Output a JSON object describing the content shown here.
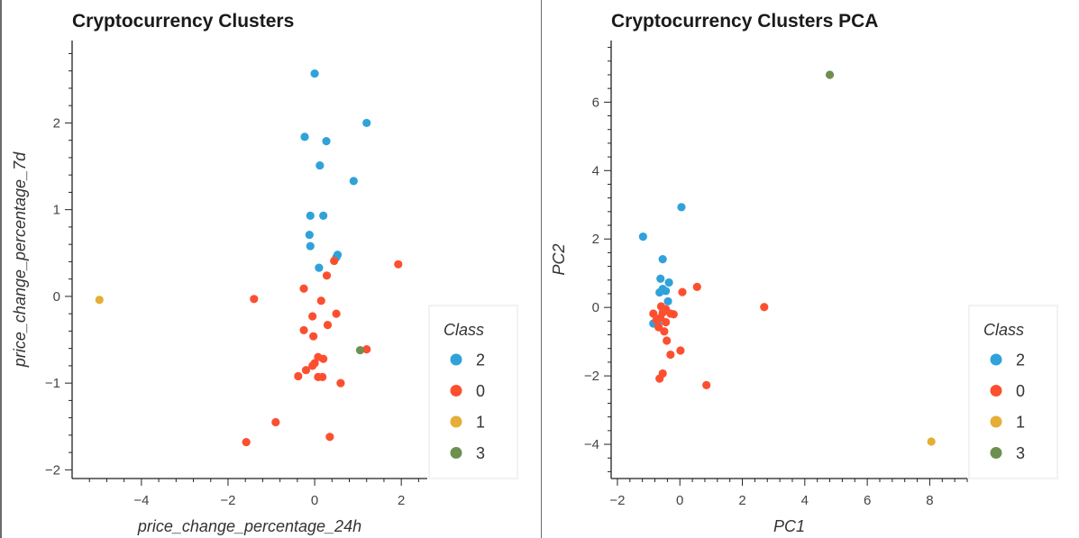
{
  "legend": {
    "title": "Class",
    "entries": [
      {
        "label": "2",
        "color": "#30a2da"
      },
      {
        "label": "0",
        "color": "#fc4f30"
      },
      {
        "label": "1",
        "color": "#e5ae38"
      },
      {
        "label": "3",
        "color": "#6d904f"
      }
    ]
  },
  "chart_data": [
    {
      "type": "scatter",
      "title": "Cryptocurrency Clusters",
      "xlabel": "price_change_percentage_24h",
      "ylabel": "price_change_percentage_7d",
      "xlim": [
        -5.6,
        2.6
      ],
      "ylim": [
        -2.1,
        2.95
      ],
      "xticks": [
        -4,
        -2,
        0,
        2
      ],
      "yticks": [
        -2,
        -1,
        0,
        1,
        2
      ],
      "series": [
        {
          "name": "2",
          "color": "#30a2da",
          "points": [
            [
              0.0,
              2.57
            ],
            [
              1.2,
              2.0
            ],
            [
              -0.23,
              1.84
            ],
            [
              0.27,
              1.79
            ],
            [
              0.12,
              1.51
            ],
            [
              0.9,
              1.33
            ],
            [
              -0.1,
              0.93
            ],
            [
              0.2,
              0.93
            ],
            [
              -0.12,
              0.71
            ],
            [
              -0.1,
              0.58
            ],
            [
              0.53,
              0.48
            ],
            [
              0.1,
              0.33
            ],
            [
              0.5,
              0.45
            ]
          ]
        },
        {
          "name": "0",
          "color": "#fc4f30",
          "points": [
            [
              1.93,
              0.37
            ],
            [
              0.45,
              0.41
            ],
            [
              0.28,
              0.24
            ],
            [
              -0.25,
              0.09
            ],
            [
              -1.4,
              -0.03
            ],
            [
              0.15,
              -0.05
            ],
            [
              0.5,
              -0.2
            ],
            [
              -0.05,
              -0.23
            ],
            [
              0.3,
              -0.33
            ],
            [
              -0.25,
              -0.39
            ],
            [
              -0.03,
              -0.46
            ],
            [
              1.2,
              -0.61
            ],
            [
              0.08,
              -0.7
            ],
            [
              0.2,
              -0.72
            ],
            [
              0.0,
              -0.77
            ],
            [
              -0.05,
              -0.8
            ],
            [
              -0.2,
              -0.85
            ],
            [
              -0.38,
              -0.92
            ],
            [
              0.08,
              -0.93
            ],
            [
              0.18,
              -0.93
            ],
            [
              0.6,
              -1.0
            ],
            [
              -0.9,
              -1.45
            ],
            [
              0.35,
              -1.62
            ],
            [
              -1.58,
              -1.68
            ]
          ]
        },
        {
          "name": "1",
          "color": "#e5ae38",
          "points": [
            [
              -4.97,
              -0.04
            ]
          ]
        },
        {
          "name": "3",
          "color": "#6d904f",
          "points": [
            [
              1.05,
              -0.62
            ]
          ]
        }
      ]
    },
    {
      "type": "scatter",
      "title": "Cryptocurrency Clusters PCA",
      "xlabel": "PC1",
      "ylabel": "PC2",
      "xlim": [
        -2.2,
        9.2
      ],
      "ylim": [
        -5.0,
        7.8
      ],
      "xticks": [
        -2,
        0,
        2,
        4,
        6,
        8
      ],
      "yticks": [
        -4,
        -2,
        0,
        2,
        4,
        6
      ],
      "series": [
        {
          "name": "2",
          "color": "#30a2da",
          "points": [
            [
              0.05,
              2.93
            ],
            [
              -1.18,
              2.07
            ],
            [
              -0.55,
              1.41
            ],
            [
              -0.35,
              0.73
            ],
            [
              -0.62,
              0.84
            ],
            [
              -0.45,
              0.48
            ],
            [
              -0.65,
              0.44
            ],
            [
              -0.38,
              0.18
            ],
            [
              -0.55,
              0.54
            ],
            [
              -0.85,
              -0.47
            ],
            [
              -0.7,
              -0.5
            ]
          ]
        },
        {
          "name": "0",
          "color": "#fc4f30",
          "points": [
            [
              0.55,
              0.6
            ],
            [
              0.08,
              0.45
            ],
            [
              2.7,
              0.01
            ],
            [
              -0.6,
              0.03
            ],
            [
              -0.45,
              -0.05
            ],
            [
              -0.3,
              -0.18
            ],
            [
              -0.85,
              -0.18
            ],
            [
              -0.62,
              -0.3
            ],
            [
              -0.75,
              -0.37
            ],
            [
              -0.45,
              -0.43
            ],
            [
              -0.68,
              -0.58
            ],
            [
              -0.5,
              -0.7
            ],
            [
              -0.42,
              -0.97
            ],
            [
              0.02,
              -1.26
            ],
            [
              -0.3,
              -1.38
            ],
            [
              -0.55,
              -1.93
            ],
            [
              -0.65,
              -2.08
            ],
            [
              0.85,
              -2.27
            ],
            [
              -0.2,
              -0.2
            ],
            [
              -0.55,
              -0.15
            ]
          ]
        },
        {
          "name": "1",
          "color": "#e5ae38",
          "points": [
            [
              8.05,
              -3.92
            ]
          ]
        },
        {
          "name": "3",
          "color": "#6d904f",
          "points": [
            [
              4.8,
              6.8
            ]
          ]
        }
      ]
    }
  ]
}
